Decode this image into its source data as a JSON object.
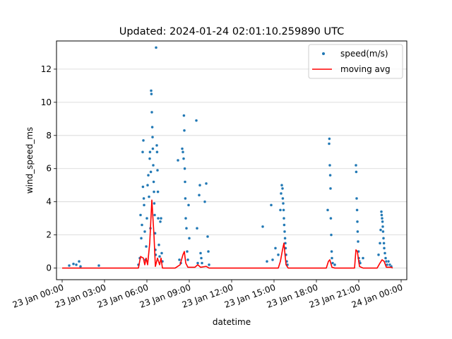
{
  "chart_data": {
    "type": "scatter",
    "title": "Updated: 2024-01-24 02:01:10.259890 UTC",
    "xlabel": "datetime",
    "ylabel": "wind_speed_ms",
    "xlim_hours": [
      -0.4,
      24.4
    ],
    "ylim": [
      -0.7,
      13.7
    ],
    "x_ticks": [
      {
        "hour": 0,
        "label": "23 Jan 00:00"
      },
      {
        "hour": 3,
        "label": "23 Jan 03:00"
      },
      {
        "hour": 6,
        "label": "23 Jan 06:00"
      },
      {
        "hour": 9,
        "label": "23 Jan 09:00"
      },
      {
        "hour": 12,
        "label": "23 Jan 12:00"
      },
      {
        "hour": 15,
        "label": "23 Jan 15:00"
      },
      {
        "hour": 18,
        "label": "23 Jan 18:00"
      },
      {
        "hour": 21,
        "label": "23 Jan 21:00"
      },
      {
        "hour": 24,
        "label": "24 Jan 00:00"
      }
    ],
    "y_ticks": [
      0,
      2,
      4,
      6,
      8,
      10,
      12
    ],
    "grid": "horizontal",
    "legend": {
      "position": "top-right",
      "entries": [
        "speed(m/s)",
        "moving avg"
      ]
    },
    "series": [
      {
        "name": "speed(m/s)",
        "kind": "scatter",
        "color": "#1f77b4",
        "points": [
          [
            0.5,
            0.15
          ],
          [
            0.8,
            0.25
          ],
          [
            1.0,
            0.2
          ],
          [
            1.2,
            0.4
          ],
          [
            1.3,
            0.1
          ],
          [
            2.6,
            0.15
          ],
          [
            5.4,
            0.2
          ],
          [
            5.5,
            0.6
          ],
          [
            5.55,
            3.2
          ],
          [
            5.6,
            1.8
          ],
          [
            5.65,
            2.6
          ],
          [
            5.7,
            7.0
          ],
          [
            5.72,
            4.9
          ],
          [
            5.75,
            7.7
          ],
          [
            5.78,
            4.2
          ],
          [
            5.8,
            3.8
          ],
          [
            5.85,
            2.2
          ],
          [
            5.9,
            0.5
          ],
          [
            5.95,
            1.3
          ],
          [
            6.0,
            3.0
          ],
          [
            6.05,
            5.0
          ],
          [
            6.1,
            5.6
          ],
          [
            6.15,
            4.3
          ],
          [
            6.2,
            6.6
          ],
          [
            6.22,
            7.0
          ],
          [
            6.25,
            2.4
          ],
          [
            6.28,
            5.8
          ],
          [
            6.3,
            10.7
          ],
          [
            6.32,
            10.5
          ],
          [
            6.35,
            9.4
          ],
          [
            6.38,
            8.5
          ],
          [
            6.4,
            7.9
          ],
          [
            6.42,
            7.2
          ],
          [
            6.45,
            6.2
          ],
          [
            6.48,
            5.2
          ],
          [
            6.5,
            4.6
          ],
          [
            6.52,
            3.9
          ],
          [
            6.55,
            3.2
          ],
          [
            6.58,
            2.1
          ],
          [
            6.6,
            1.1
          ],
          [
            6.62,
            0.8
          ],
          [
            6.65,
            13.3
          ],
          [
            6.7,
            7.4
          ],
          [
            6.72,
            7.0
          ],
          [
            6.75,
            5.9
          ],
          [
            6.78,
            4.6
          ],
          [
            6.8,
            3.0
          ],
          [
            6.85,
            1.4
          ],
          [
            6.9,
            0.7
          ],
          [
            6.95,
            2.8
          ],
          [
            7.0,
            3.0
          ],
          [
            7.05,
            0.9
          ],
          [
            7.1,
            0.4
          ],
          [
            8.2,
            6.5
          ],
          [
            8.3,
            0.5
          ],
          [
            8.4,
            0.3
          ],
          [
            8.5,
            7.2
          ],
          [
            8.55,
            7.0
          ],
          [
            8.6,
            6.6
          ],
          [
            8.62,
            9.2
          ],
          [
            8.65,
            8.3
          ],
          [
            8.68,
            6.0
          ],
          [
            8.7,
            5.2
          ],
          [
            8.72,
            4.2
          ],
          [
            8.75,
            3.0
          ],
          [
            8.8,
            2.4
          ],
          [
            8.85,
            1.0
          ],
          [
            8.9,
            0.5
          ],
          [
            8.95,
            3.8
          ],
          [
            9.0,
            1.8
          ],
          [
            9.5,
            8.9
          ],
          [
            9.55,
            2.4
          ],
          [
            9.6,
            0.3
          ],
          [
            9.7,
            4.4
          ],
          [
            9.75,
            5.0
          ],
          [
            9.8,
            0.9
          ],
          [
            9.85,
            0.6
          ],
          [
            9.9,
            0.3
          ],
          [
            10.1,
            4.0
          ],
          [
            10.2,
            5.1
          ],
          [
            10.3,
            1.9
          ],
          [
            10.35,
            1.0
          ],
          [
            10.4,
            0.2
          ],
          [
            14.2,
            2.5
          ],
          [
            14.5,
            0.4
          ],
          [
            14.8,
            3.8
          ],
          [
            14.9,
            0.5
          ],
          [
            15.1,
            1.2
          ],
          [
            15.3,
            0.8
          ],
          [
            15.45,
            3.5
          ],
          [
            15.5,
            4.5
          ],
          [
            15.55,
            5.0
          ],
          [
            15.6,
            4.8
          ],
          [
            15.62,
            4.2
          ],
          [
            15.65,
            3.9
          ],
          [
            15.68,
            3.5
          ],
          [
            15.7,
            3.0
          ],
          [
            15.72,
            2.6
          ],
          [
            15.75,
            2.2
          ],
          [
            15.78,
            1.8
          ],
          [
            15.8,
            1.5
          ],
          [
            15.82,
            1.2
          ],
          [
            15.85,
            0.8
          ],
          [
            15.9,
            0.4
          ],
          [
            15.95,
            0.2
          ],
          [
            18.8,
            3.5
          ],
          [
            18.9,
            7.5
          ],
          [
            18.92,
            7.8
          ],
          [
            18.95,
            6.2
          ],
          [
            18.98,
            5.6
          ],
          [
            19.0,
            4.8
          ],
          [
            19.02,
            3.0
          ],
          [
            19.05,
            2.0
          ],
          [
            19.08,
            1.0
          ],
          [
            19.1,
            0.6
          ],
          [
            19.15,
            0.3
          ],
          [
            19.3,
            0.2
          ],
          [
            20.8,
            6.2
          ],
          [
            20.82,
            5.8
          ],
          [
            20.85,
            4.2
          ],
          [
            20.88,
            3.5
          ],
          [
            20.9,
            2.8
          ],
          [
            20.92,
            2.2
          ],
          [
            20.95,
            1.6
          ],
          [
            20.98,
            1.0
          ],
          [
            21.0,
            0.6
          ],
          [
            21.05,
            0.4
          ],
          [
            21.1,
            0.3
          ],
          [
            21.3,
            0.6
          ],
          [
            22.4,
            0.8
          ],
          [
            22.5,
            1.5
          ],
          [
            22.55,
            2.3
          ],
          [
            22.6,
            3.4
          ],
          [
            22.62,
            3.2
          ],
          [
            22.65,
            3.0
          ],
          [
            22.68,
            2.8
          ],
          [
            22.7,
            2.5
          ],
          [
            22.72,
            2.2
          ],
          [
            22.75,
            1.8
          ],
          [
            22.78,
            1.5
          ],
          [
            22.8,
            1.2
          ],
          [
            22.85,
            0.9
          ],
          [
            22.9,
            0.6
          ],
          [
            22.95,
            0.4
          ],
          [
            23.0,
            0.2
          ],
          [
            23.1,
            0.4
          ],
          [
            23.2,
            0.2
          ],
          [
            23.3,
            0.1
          ]
        ]
      },
      {
        "name": "moving avg",
        "kind": "line",
        "color": "#ff0000",
        "points": [
          [
            0,
            0
          ],
          [
            5.4,
            0
          ],
          [
            5.55,
            0.7
          ],
          [
            5.75,
            0.6
          ],
          [
            5.85,
            0.2
          ],
          [
            5.95,
            0.6
          ],
          [
            6.05,
            0.2
          ],
          [
            6.2,
            1.5
          ],
          [
            6.35,
            4.1
          ],
          [
            6.5,
            2.0
          ],
          [
            6.6,
            0.1
          ],
          [
            6.75,
            0.6
          ],
          [
            6.9,
            0.2
          ],
          [
            7.0,
            0.6
          ],
          [
            7.1,
            0
          ],
          [
            8.0,
            0
          ],
          [
            8.35,
            0.2
          ],
          [
            8.55,
            0.8
          ],
          [
            8.65,
            1.0
          ],
          [
            8.75,
            0.3
          ],
          [
            8.9,
            0.05
          ],
          [
            9.4,
            0.05
          ],
          [
            9.6,
            0.2
          ],
          [
            9.8,
            0.05
          ],
          [
            10.2,
            0.1
          ],
          [
            10.4,
            0
          ],
          [
            15.3,
            0
          ],
          [
            15.45,
            0.4
          ],
          [
            15.6,
            1.1
          ],
          [
            15.7,
            1.5
          ],
          [
            15.85,
            0.2
          ],
          [
            16.0,
            0
          ],
          [
            18.7,
            0
          ],
          [
            18.85,
            0.4
          ],
          [
            18.95,
            0.5
          ],
          [
            19.1,
            0.05
          ],
          [
            19.3,
            0
          ],
          [
            20.7,
            0
          ],
          [
            20.8,
            1.1
          ],
          [
            20.9,
            1.0
          ],
          [
            21.05,
            0.1
          ],
          [
            21.3,
            0
          ],
          [
            22.3,
            0
          ],
          [
            22.5,
            0.3
          ],
          [
            22.65,
            0.5
          ],
          [
            22.8,
            0.4
          ],
          [
            22.95,
            0.05
          ],
          [
            23.3,
            0.05
          ],
          [
            23.4,
            0
          ]
        ]
      }
    ]
  }
}
